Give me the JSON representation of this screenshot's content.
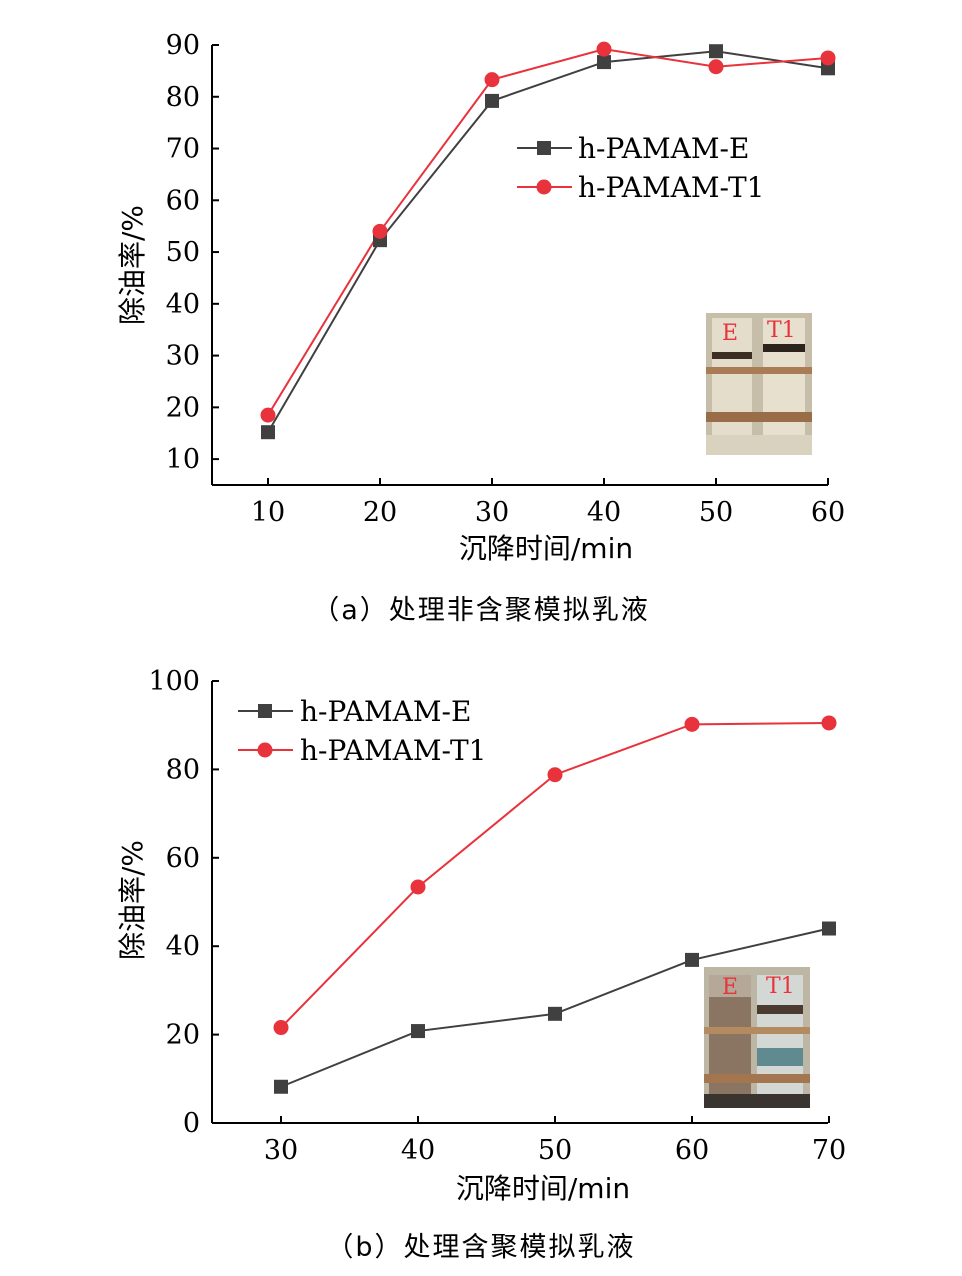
{
  "chart_data": [
    {
      "type": "line",
      "caption": "（a）处理非含聚模拟乳液",
      "xlabel": "沉降时间/min",
      "ylabel": "除油率/%",
      "x": [
        10,
        20,
        30,
        40,
        50,
        60
      ],
      "xticks": [
        10,
        20,
        30,
        40,
        50,
        60
      ],
      "yticks": [
        10,
        20,
        30,
        40,
        50,
        60,
        70,
        80,
        90
      ],
      "xlim": [
        5,
        60
      ],
      "ylim": [
        5,
        90
      ],
      "legend_position": "center-right",
      "series": [
        {
          "name": "h-PAMAM-E",
          "marker": "square",
          "color": "#404040",
          "values": [
            15.2,
            52.3,
            79.2,
            86.7,
            88.8,
            85.5
          ]
        },
        {
          "name": "h-PAMAM-T1",
          "marker": "circle",
          "color": "#e8323c",
          "values": [
            18.5,
            54.0,
            83.3,
            89.2,
            85.8,
            87.5
          ]
        }
      ],
      "inset": {
        "labels": [
          "E",
          "T1"
        ],
        "label_color": "#e8323c"
      }
    },
    {
      "type": "line",
      "caption": "（b）处理含聚模拟乳液",
      "xlabel": "沉降时间/min",
      "ylabel": "除油率/%",
      "x": [
        30,
        40,
        50,
        60,
        70
      ],
      "xticks": [
        30,
        40,
        50,
        60,
        70
      ],
      "yticks": [
        0,
        20,
        40,
        60,
        80,
        100
      ],
      "xlim": [
        25,
        70
      ],
      "ylim": [
        0,
        100
      ],
      "legend_position": "top-left",
      "series": [
        {
          "name": "h-PAMAM-E",
          "marker": "square",
          "color": "#404040",
          "values": [
            8.2,
            20.8,
            24.7,
            36.9,
            44.0
          ]
        },
        {
          "name": "h-PAMAM-T1",
          "marker": "circle",
          "color": "#e8323c",
          "values": [
            21.6,
            53.4,
            78.8,
            90.2,
            90.5
          ]
        }
      ],
      "inset": {
        "labels": [
          "E",
          "T1"
        ],
        "label_color": "#e8323c"
      }
    }
  ]
}
